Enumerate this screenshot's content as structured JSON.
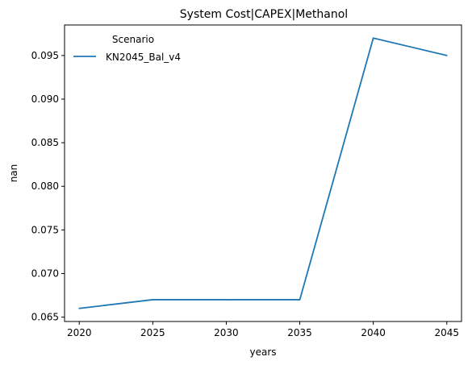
{
  "chart_data": {
    "type": "line",
    "title": "System Cost|CAPEX|Methanol",
    "xlabel": "years",
    "ylabel": "nan",
    "x": [
      2020,
      2025,
      2030,
      2035,
      2040,
      2045
    ],
    "xticks": [
      2020,
      2025,
      2030,
      2035,
      2040,
      2045
    ],
    "xlim": [
      2019,
      2046
    ],
    "yticks": [
      0.065,
      0.07,
      0.075,
      0.08,
      0.085,
      0.09,
      0.095
    ],
    "ylim": [
      0.0645,
      0.0985
    ],
    "grid": false,
    "legend": {
      "title": "Scenario",
      "placement": "upper-left"
    },
    "series": [
      {
        "name": "KN2045_Bal_v4",
        "color": "#1f77b4",
        "values": [
          0.066,
          0.067,
          0.067,
          0.067,
          0.097,
          0.095
        ]
      }
    ]
  }
}
